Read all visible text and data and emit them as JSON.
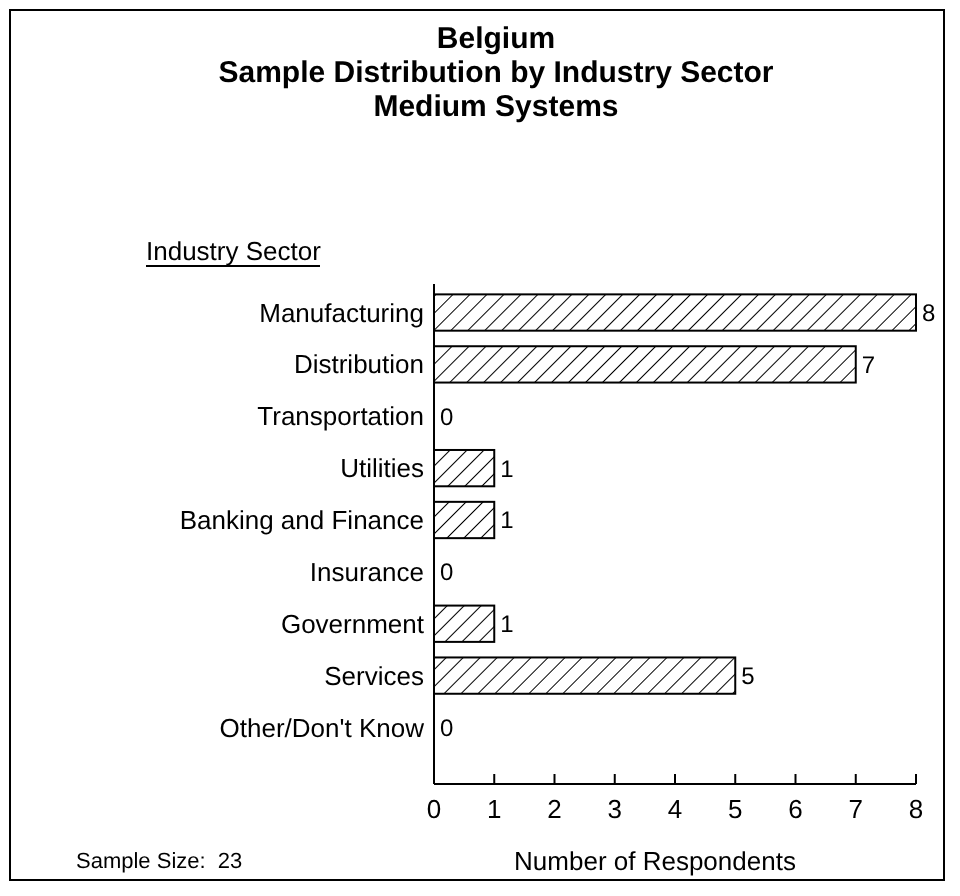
{
  "chart_data": {
    "type": "bar",
    "orientation": "horizontal",
    "title": "Belgium",
    "subtitle": "Sample Distribution by Industry Sector\nMedium Systems",
    "ylabel": "Industry Sector",
    "xlabel": "Number of Respondents",
    "categories": [
      "Manufacturing",
      "Distribution",
      "Transportation",
      "Utilities",
      "Banking and Finance",
      "Insurance",
      "Government",
      "Services",
      "Other/Don't Know"
    ],
    "values": [
      8,
      7,
      0,
      1,
      1,
      0,
      1,
      5,
      0
    ],
    "color": "#000000",
    "xlim": [
      0,
      8
    ],
    "xticks": [
      0,
      1,
      2,
      3,
      4,
      5,
      6,
      7,
      8
    ],
    "data_labels": true,
    "grid": false,
    "annotations": [
      "Sample Size:  23"
    ]
  }
}
